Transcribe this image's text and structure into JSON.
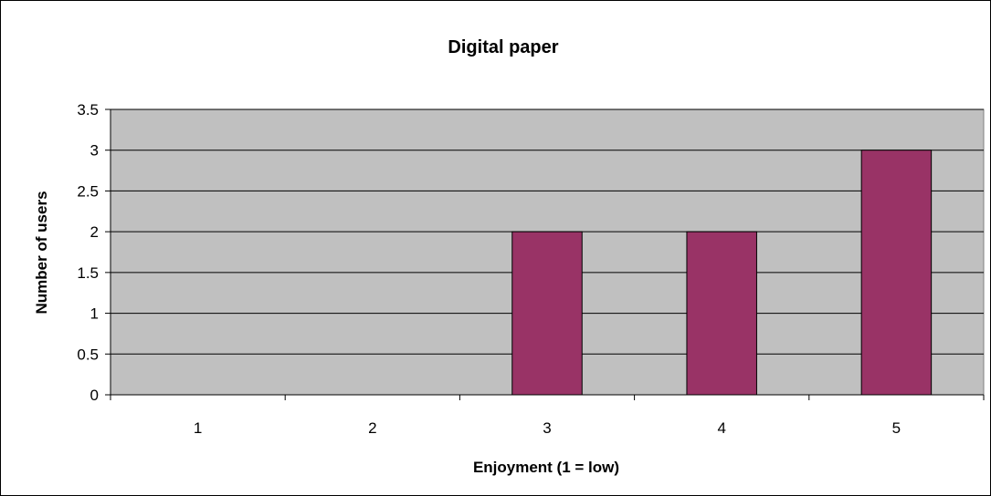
{
  "chart_data": {
    "type": "bar",
    "title": "Digital paper",
    "xlabel": "Enjoyment (1 = low)",
    "ylabel": "Number of users",
    "categories": [
      "1",
      "2",
      "3",
      "4",
      "5"
    ],
    "values": [
      0,
      0,
      2,
      2,
      3
    ],
    "ylim": [
      0,
      3.5
    ],
    "yticks": [
      "0",
      "0.5",
      "1",
      "1.5",
      "2",
      "2.5",
      "3",
      "3.5"
    ],
    "grid": true,
    "legend": "none",
    "colors": {
      "bar": "#993366",
      "plot_background": "#c0c0c0",
      "gridline": "#000000"
    }
  }
}
